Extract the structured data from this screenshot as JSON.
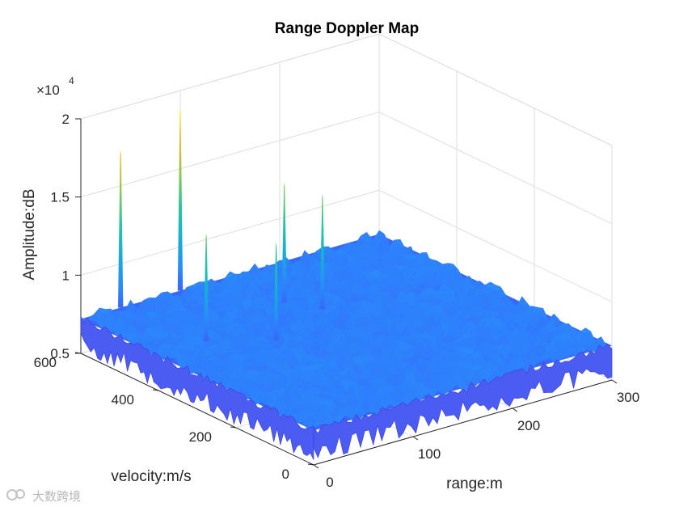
{
  "chart_data": {
    "type": "surface3d",
    "title": "Range Doppler Map",
    "xlabel": "range:m",
    "ylabel": "velocity:m/s",
    "zlabel": "Amplitude:dB",
    "z_exponent_label": "×10",
    "z_exponent_power": "4",
    "xlim": [
      0,
      300
    ],
    "ylim": [
      0,
      600
    ],
    "zlim": [
      5000,
      20000
    ],
    "x_ticks": [
      0,
      100,
      200,
      300
    ],
    "y_ticks": [
      0,
      200,
      400,
      600
    ],
    "z_ticks": [
      5000,
      10000,
      15000,
      20000
    ],
    "z_tick_labels": [
      "0.5",
      "1",
      "1.5",
      "2"
    ],
    "noise_floor_mean": 7200,
    "noise_floor_spread": 900,
    "peaks": [
      {
        "range": 40,
        "velocity": 600,
        "amplitude": 17300
      },
      {
        "range": 100,
        "velocity": 600,
        "amplitude": 18900
      },
      {
        "range": 50,
        "velocity": 405,
        "amplitude": 14100
      },
      {
        "range": 95,
        "velocity": 340,
        "amplitude": 13500
      },
      {
        "range": 150,
        "velocity": 460,
        "amplitude": 14900
      },
      {
        "range": 165,
        "velocity": 400,
        "amplitude": 14600
      }
    ],
    "colormap": "parula"
  },
  "watermark": "大数跨境"
}
